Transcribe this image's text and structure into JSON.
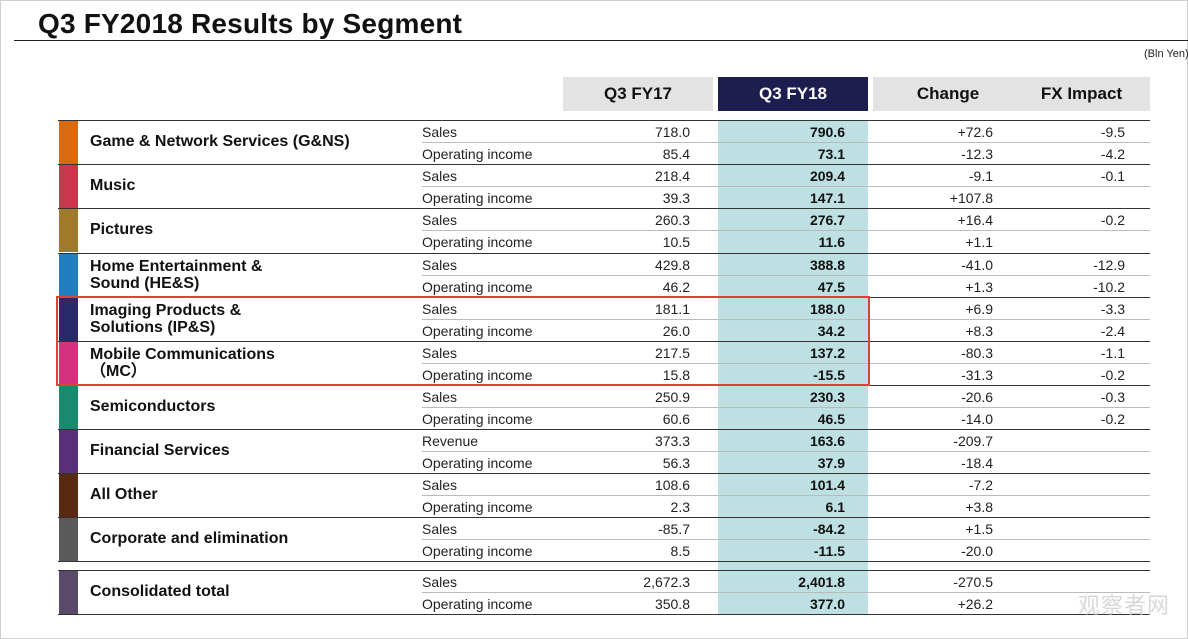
{
  "title": "Q3 FY2018 Results by Segment",
  "unit_note": "(Bln Yen)",
  "headers": {
    "fy17": "Q3 FY17",
    "fy18": "Q3 FY18",
    "change": "Change",
    "fx": "FX Impact"
  },
  "colors": {
    "header_gray": "#e3e3e3",
    "header_fy18": "#1d1d4f",
    "fy18_column": "#bfe0e3",
    "highlight_border": "#e0403c"
  },
  "segments": [
    {
      "name": "Game & Network Services (G&NS)",
      "color": "#d96a0f",
      "rows": [
        {
          "metric": "Sales",
          "fy17": "718.0",
          "fy18": "790.6",
          "change": "+72.6",
          "fx": "-9.5"
        },
        {
          "metric": "Operating income",
          "fy17": "85.4",
          "fy18": "73.1",
          "change": "-12.3",
          "fx": "-4.2"
        }
      ]
    },
    {
      "name": "Music",
      "color": "#c8374b",
      "rows": [
        {
          "metric": "Sales",
          "fy17": "218.4",
          "fy18": "209.4",
          "change": "-9.1",
          "fx": "-0.1"
        },
        {
          "metric": "Operating income",
          "fy17": "39.3",
          "fy18": "147.1",
          "change": "+107.8",
          "fx": ""
        }
      ]
    },
    {
      "name": "Pictures",
      "color": "#a07a2a",
      "rows": [
        {
          "metric": "Sales",
          "fy17": "260.3",
          "fy18": "276.7",
          "change": "+16.4",
          "fx": "-0.2"
        },
        {
          "metric": "Operating income",
          "fy17": "10.5",
          "fy18": "11.6",
          "change": "+1.1",
          "fx": ""
        }
      ]
    },
    {
      "name_line1": "Home Entertainment &",
      "name_line2": "Sound (HE&S)",
      "color": "#1f7fbf",
      "rows": [
        {
          "metric": "Sales",
          "fy17": "429.8",
          "fy18": "388.8",
          "change": "-41.0",
          "fx": "-12.9"
        },
        {
          "metric": "Operating income",
          "fy17": "46.2",
          "fy18": "47.5",
          "change": "+1.3",
          "fx": "-10.2"
        }
      ]
    },
    {
      "name_line1": "Imaging Products &",
      "name_line2": "Solutions (IP&S)",
      "color": "#2a2a6a",
      "rows": [
        {
          "metric": "Sales",
          "fy17": "181.1",
          "fy18": "188.0",
          "change": "+6.9",
          "fx": "-3.3"
        },
        {
          "metric": "Operating income",
          "fy17": "26.0",
          "fy18": "34.2",
          "change": "+8.3",
          "fx": "-2.4"
        }
      ]
    },
    {
      "name_line1": "Mobile Communications",
      "name_line2": "（MC）",
      "color": "#d4317f",
      "rows": [
        {
          "metric": "Sales",
          "fy17": "217.5",
          "fy18": "137.2",
          "change": "-80.3",
          "fx": "-1.1"
        },
        {
          "metric": "Operating income",
          "fy17": "15.8",
          "fy18": "-15.5",
          "change": "-31.3",
          "fx": "-0.2"
        }
      ]
    },
    {
      "name": "Semiconductors",
      "color": "#1a8a6e",
      "rows": [
        {
          "metric": "Sales",
          "fy17": "250.9",
          "fy18": "230.3",
          "change": "-20.6",
          "fx": "-0.3"
        },
        {
          "metric": "Operating income",
          "fy17": "60.6",
          "fy18": "46.5",
          "change": "-14.0",
          "fx": "-0.2"
        }
      ]
    },
    {
      "name": "Financial Services",
      "color": "#5a2f7a",
      "rows": [
        {
          "metric": "Revenue",
          "fy17": "373.3",
          "fy18": "163.6",
          "change": "-209.7",
          "fx": ""
        },
        {
          "metric": "Operating income",
          "fy17": "56.3",
          "fy18": "37.9",
          "change": "-18.4",
          "fx": ""
        }
      ]
    },
    {
      "name": "All Other",
      "color": "#5a2a10",
      "rows": [
        {
          "metric": "Sales",
          "fy17": "108.6",
          "fy18": "101.4",
          "change": "-7.2",
          "fx": ""
        },
        {
          "metric": "Operating income",
          "fy17": "2.3",
          "fy18": "6.1",
          "change": "+3.8",
          "fx": ""
        }
      ]
    },
    {
      "name": "Corporate and elimination",
      "color": "#5a5a5a",
      "rows": [
        {
          "metric": "Sales",
          "fy17": "-85.7",
          "fy18": "-84.2",
          "change": "+1.5",
          "fx": ""
        },
        {
          "metric": "Operating income",
          "fy17": "8.5",
          "fy18": "-11.5",
          "change": "-20.0",
          "fx": ""
        }
      ]
    },
    {
      "name": "Consolidated total",
      "color": "#5a4a6a",
      "rows": [
        {
          "metric": "Sales",
          "fy17": "2,672.3",
          "fy18": "2,401.8",
          "change": "-270.5",
          "fx": ""
        },
        {
          "metric": "Operating income",
          "fy17": "350.8",
          "fy18": "377.0",
          "change": "+26.2",
          "fx": ""
        }
      ]
    }
  ],
  "watermark": "观察者网"
}
